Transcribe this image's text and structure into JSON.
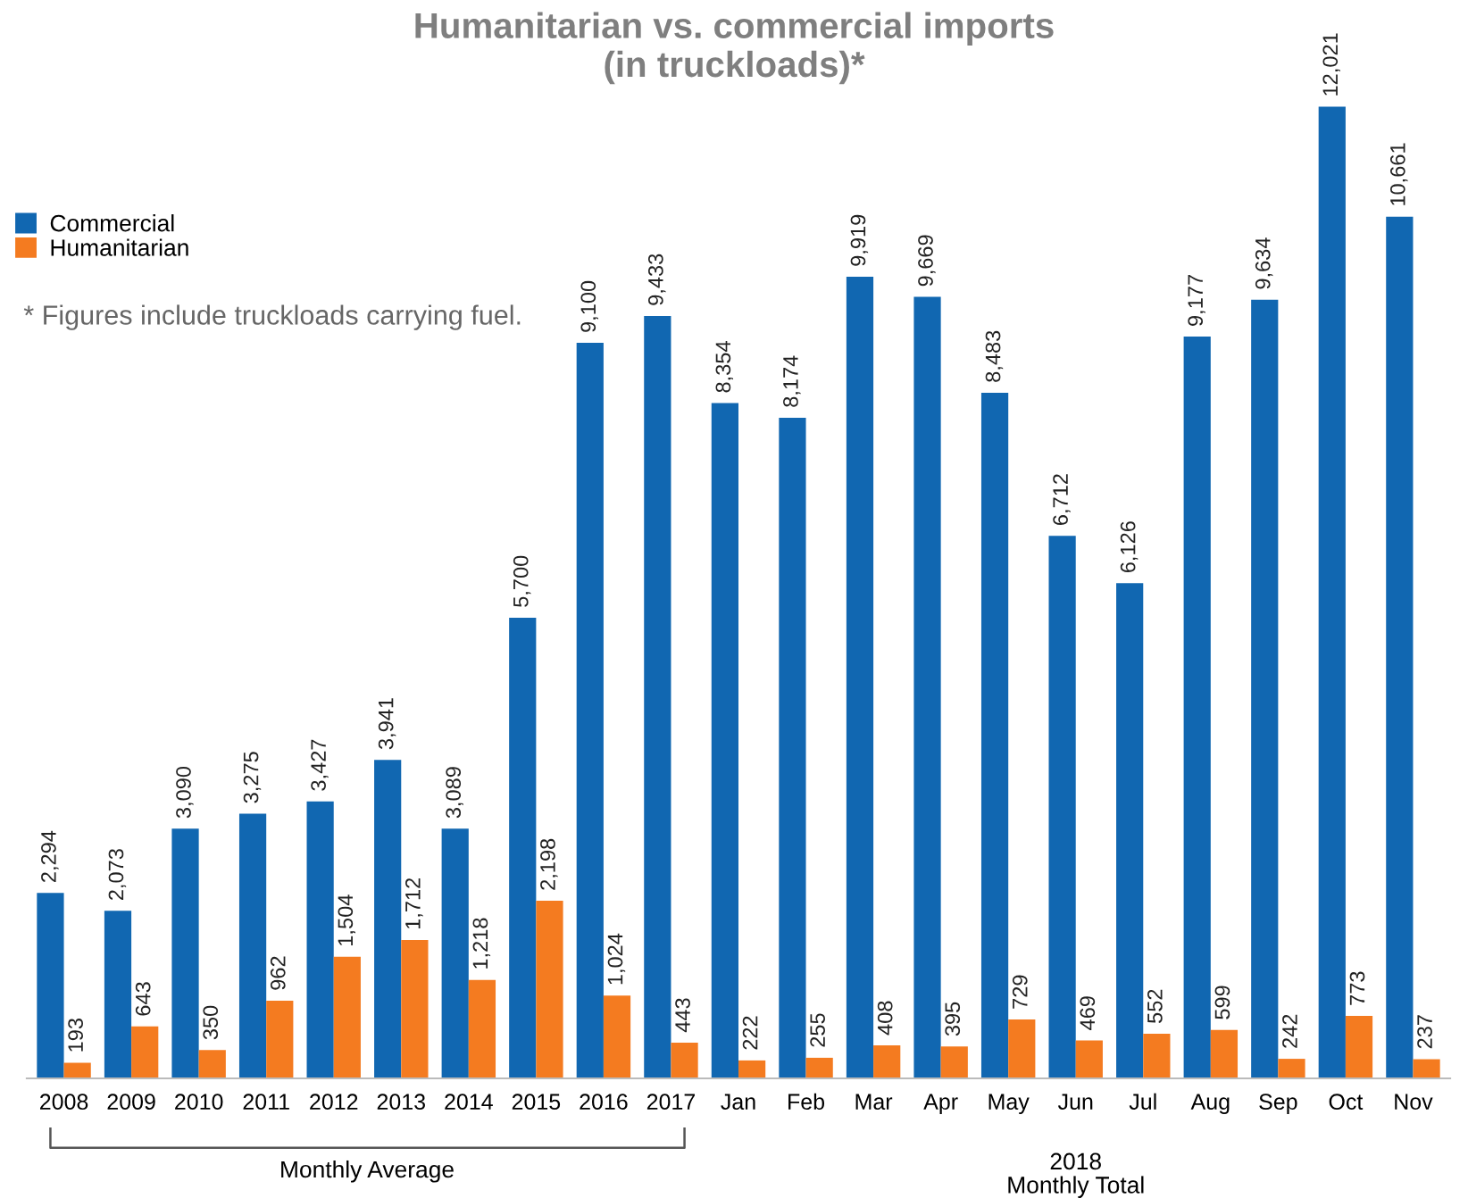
{
  "chart_data": {
    "type": "bar",
    "title": "Humanitarian vs. commercial imports\n(in truckloads)*",
    "categories": [
      "2008",
      "2009",
      "2010",
      "2011",
      "2012",
      "2013",
      "2014",
      "2015",
      "2016",
      "2017",
      "Jan",
      "Feb",
      "Mar",
      "Apr",
      "May",
      "Jun",
      "Jul",
      "Aug",
      "Sep",
      "Oct",
      "Nov"
    ],
    "series": [
      {
        "name": "Commercial",
        "color": "#1167b1",
        "values": [
          2294,
          2073,
          3090,
          3275,
          3427,
          3941,
          3089,
          5700,
          9100,
          9433,
          8354,
          8174,
          9919,
          9669,
          8483,
          6712,
          6126,
          9177,
          9634,
          12021,
          10661
        ],
        "value_labels": [
          "2,294",
          "2,073",
          "3,090",
          "3,275",
          "3,427",
          "3,941",
          "3,089",
          "5,700",
          "9,100",
          "9,433",
          "8,354",
          "8,174",
          "9,919",
          "9,669",
          "8,483",
          "6,712",
          "6,126",
          "9,177",
          "9,634",
          "12,021",
          "10,661"
        ]
      },
      {
        "name": "Humanitarian",
        "color": "#f47b20",
        "values": [
          193,
          643,
          350,
          962,
          1504,
          1712,
          1218,
          2198,
          1024,
          443,
          222,
          255,
          408,
          395,
          729,
          469,
          552,
          599,
          242,
          773,
          237
        ],
        "value_labels": [
          "193",
          "643",
          "350",
          "962",
          "1,504",
          "1,712",
          "1,218",
          "2,198",
          "1,024",
          "443",
          "222",
          "255",
          "408",
          "395",
          "729",
          "469",
          "552",
          "599",
          "242",
          "773",
          "237"
        ]
      }
    ],
    "legend": "top left",
    "grid": false,
    "annotations": [
      "* Figures include truckloads carrying fuel.",
      "Monthly Average",
      "2018\nMonthly Total"
    ]
  }
}
